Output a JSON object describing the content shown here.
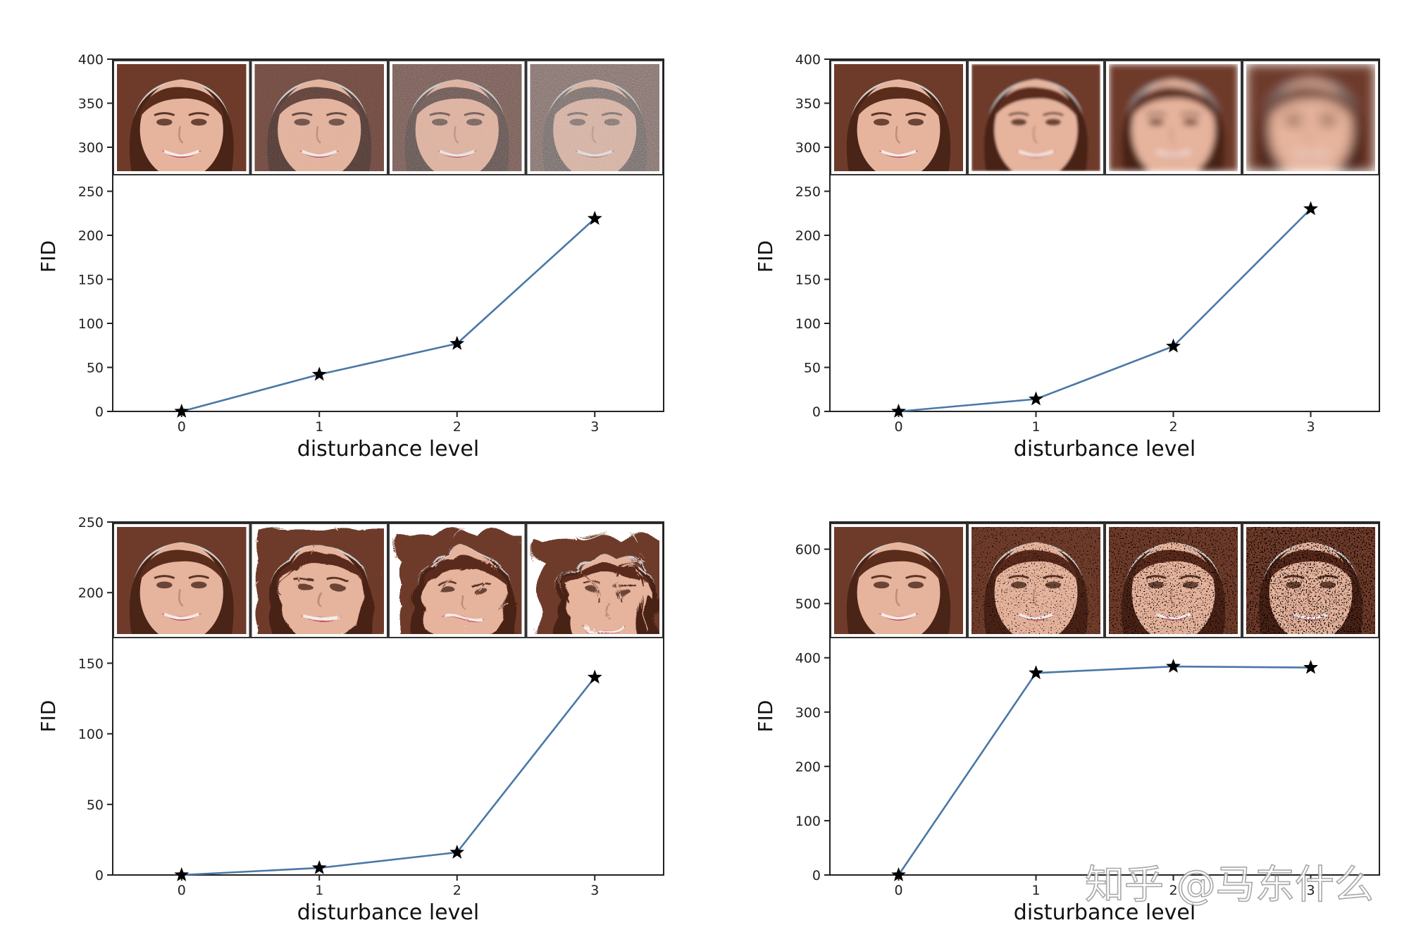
{
  "chart_data": [
    {
      "type": "line",
      "xlabel": "disturbance level",
      "ylabel": "FID",
      "x": [
        0,
        1,
        2,
        3
      ],
      "y": [
        0,
        42,
        77,
        219
      ],
      "ylim": [
        0,
        400
      ],
      "yticks": [
        0,
        50,
        100,
        150,
        200,
        250,
        300,
        350,
        400
      ],
      "marker": "star",
      "line_color": "#4a78a6",
      "disturbance_thumbnails": "noise"
    },
    {
      "type": "line",
      "xlabel": "disturbance level",
      "ylabel": "FID",
      "x": [
        0,
        1,
        2,
        3
      ],
      "y": [
        0,
        14,
        74,
        230
      ],
      "ylim": [
        0,
        400
      ],
      "yticks": [
        0,
        50,
        100,
        150,
        200,
        250,
        300,
        350,
        400
      ],
      "marker": "star",
      "line_color": "#4a78a6",
      "disturbance_thumbnails": "blur"
    },
    {
      "type": "line",
      "xlabel": "disturbance level",
      "ylabel": "FID",
      "x": [
        0,
        1,
        2,
        3
      ],
      "y": [
        0,
        5,
        16,
        140
      ],
      "ylim": [
        0,
        250
      ],
      "yticks": [
        0,
        50,
        100,
        150,
        200,
        250
      ],
      "marker": "star",
      "line_color": "#4a78a6",
      "disturbance_thumbnails": "swirl"
    },
    {
      "type": "line",
      "xlabel": "disturbance level",
      "ylabel": "FID",
      "x": [
        0,
        1,
        2,
        3
      ],
      "y": [
        0,
        372,
        384,
        382
      ],
      "ylim": [
        0,
        650
      ],
      "yticks": [
        0,
        100,
        200,
        300,
        400,
        500,
        600
      ],
      "marker": "star",
      "line_color": "#4a78a6",
      "disturbance_thumbnails": "salt-and-pepper"
    }
  ],
  "watermark": "知乎 @马东什么"
}
